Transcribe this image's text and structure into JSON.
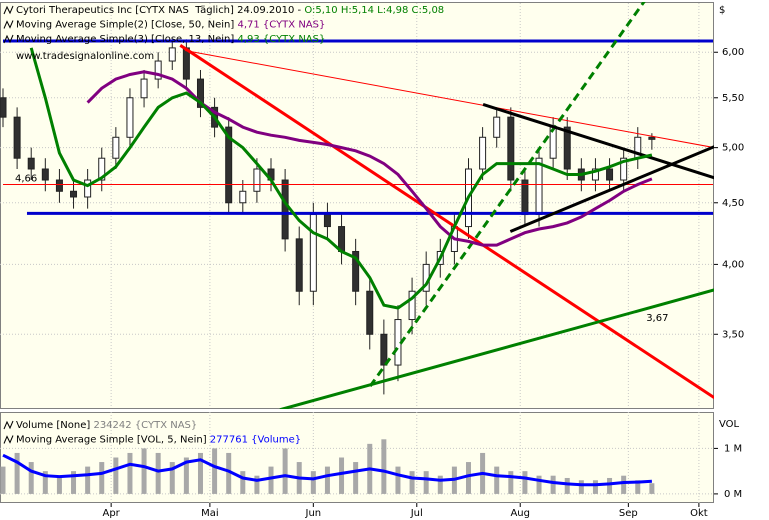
{
  "chart_data": [
    {
      "type": "candlestick",
      "header": [
        {
          "text": "Cytori Therapeutics Inc [CYTX NAS  Täglich] 24.09.2010 - ",
          "value": "O:5,10 H:5,14 L:4,98 C:5,08",
          "color": "#008000"
        },
        {
          "text": "Moving Average Simple(2) [Close, 50, Nein] ",
          "value": "4,71",
          "tail": " {CYTX NAS}",
          "color": "#800080"
        },
        {
          "text": "Moving Average Simple(3) [Close, 13, Nein] ",
          "value": "4,93",
          "tail": " {CYTX NAS}",
          "color": "#008000"
        }
      ],
      "watermark": "www.tradesignalonline.com",
      "y_label": "$",
      "x": [
        0,
        3,
        6,
        9,
        12,
        15,
        18,
        21,
        24,
        27,
        30,
        33,
        36,
        39,
        42,
        45,
        48,
        51,
        54,
        57,
        60,
        63,
        66,
        69,
        72,
        75,
        78,
        81,
        84,
        87,
        90,
        93,
        96,
        99,
        102,
        105,
        108,
        111,
        114,
        117,
        120,
        123,
        126,
        129,
        132,
        135,
        138
      ],
      "open": [
        5.5,
        5.3,
        4.9,
        4.8,
        4.7,
        4.6,
        4.55,
        4.7,
        4.9,
        5.1,
        5.5,
        5.7,
        5.9,
        6.05,
        5.7,
        5.4,
        5.2,
        4.5,
        4.6,
        4.8,
        4.7,
        4.2,
        3.8,
        4.4,
        4.3,
        4.1,
        3.8,
        3.5,
        3.3,
        3.6,
        3.8,
        4.0,
        4.1,
        4.3,
        4.8,
        5.1,
        5.3,
        4.7,
        4.4,
        4.9,
        5.2,
        4.8,
        4.7,
        4.8,
        4.7,
        4.9,
        5.1
      ],
      "high": [
        5.6,
        5.4,
        5.0,
        4.9,
        4.8,
        4.7,
        4.8,
        5.0,
        5.2,
        5.6,
        5.8,
        6.0,
        6.15,
        6.15,
        5.8,
        5.5,
        5.3,
        4.7,
        4.9,
        4.9,
        4.8,
        4.3,
        4.5,
        4.5,
        4.4,
        4.2,
        3.9,
        3.6,
        3.7,
        3.9,
        4.1,
        4.2,
        4.4,
        4.9,
        5.2,
        5.4,
        5.4,
        4.8,
        5.0,
        5.3,
        5.3,
        4.9,
        4.9,
        4.9,
        5.0,
        5.2,
        5.14
      ],
      "low": [
        5.2,
        4.8,
        4.7,
        4.6,
        4.5,
        4.45,
        4.45,
        4.6,
        4.8,
        5.0,
        5.4,
        5.6,
        5.8,
        5.6,
        5.3,
        5.1,
        4.4,
        4.4,
        4.5,
        4.6,
        4.1,
        3.7,
        3.7,
        4.2,
        4.0,
        3.7,
        3.4,
        3.12,
        3.2,
        3.5,
        3.7,
        3.9,
        4.0,
        4.2,
        4.7,
        5.0,
        4.6,
        4.3,
        4.3,
        4.8,
        4.7,
        4.6,
        4.6,
        4.6,
        4.6,
        4.8,
        4.98
      ],
      "close": [
        5.3,
        4.9,
        4.8,
        4.7,
        4.6,
        4.55,
        4.7,
        4.9,
        5.1,
        5.5,
        5.7,
        5.9,
        6.05,
        5.7,
        5.4,
        5.2,
        4.5,
        4.6,
        4.8,
        4.7,
        4.2,
        3.8,
        4.4,
        4.3,
        4.1,
        3.8,
        3.5,
        3.3,
        3.6,
        3.8,
        4.0,
        4.1,
        4.3,
        4.8,
        5.1,
        5.3,
        4.7,
        4.4,
        4.9,
        5.2,
        4.8,
        4.7,
        4.8,
        4.7,
        4.9,
        5.1,
        5.08
      ],
      "series": [
        {
          "color": "#800080",
          "values": [
            null,
            null,
            null,
            null,
            null,
            null,
            5.45,
            5.6,
            5.7,
            5.75,
            5.78,
            5.75,
            5.7,
            5.6,
            5.45,
            5.35,
            5.28,
            5.2,
            5.15,
            5.12,
            5.1,
            5.07,
            5.05,
            5.03,
            5.0,
            4.97,
            4.92,
            4.85,
            4.75,
            4.6,
            4.45,
            4.3,
            4.2,
            4.18,
            4.15,
            4.15,
            4.2,
            4.25,
            4.28,
            4.3,
            4.33,
            4.38,
            4.45,
            4.52,
            4.6,
            4.66,
            4.71
          ]
        },
        {
          "color": "#008000",
          "values": [
            null,
            null,
            6.05,
            5.5,
            4.95,
            4.7,
            4.65,
            4.72,
            4.82,
            5.0,
            5.2,
            5.4,
            5.5,
            5.55,
            5.45,
            5.3,
            5.1,
            5.0,
            4.85,
            4.7,
            4.5,
            4.35,
            4.25,
            4.2,
            4.1,
            4.05,
            3.9,
            3.7,
            3.68,
            3.75,
            3.85,
            4.05,
            4.3,
            4.55,
            4.75,
            4.85,
            4.85,
            4.85,
            4.85,
            4.8,
            4.75,
            4.75,
            4.78,
            4.82,
            4.87,
            4.9,
            4.93
          ]
        }
      ],
      "trendlines": [
        {
          "color": "#ff0000",
          "width": 3,
          "x": [
            37.7,
            151.3
          ],
          "y": [
            6.08,
            3.1
          ]
        },
        {
          "color": "#ff0000",
          "width": 1,
          "x": [
            38.7,
            151.3
          ],
          "y": [
            6.02,
            5.0
          ]
        },
        {
          "color": "#008000",
          "width": 3,
          "dashed": true,
          "x": [
            78.1,
            136.6
          ],
          "y": [
            3.17,
            6.63
          ]
        },
        {
          "color": "#008000",
          "width": 3,
          "x": [
            58.9,
            151.3
          ],
          "y": [
            3.03,
            3.81
          ],
          "label": "3,67"
        },
        {
          "color": "#000000",
          "width": 3,
          "x": [
            102.1,
            151.3
          ],
          "y": [
            5.43,
            4.72
          ]
        },
        {
          "color": "#000000",
          "width": 3,
          "x": [
            107.9,
            151.3
          ],
          "y": [
            4.26,
            5.01
          ]
        }
      ],
      "hlines": [
        {
          "color": "#0000cc",
          "width": 3,
          "x": [
            0,
            151
          ],
          "y": 6.13
        },
        {
          "color": "#0000cc",
          "width": 3,
          "x": [
            5.1,
            151
          ],
          "y": 4.41
        },
        {
          "color": "#ff0000",
          "width": 1,
          "x": [
            0,
            151
          ],
          "y": 4.66,
          "label": "4,66"
        }
      ],
      "xlim": [
        0,
        151
      ],
      "xticks": [
        {
          "value": 23,
          "label": "Apr"
        },
        {
          "value": 44,
          "label": "Mai"
        },
        {
          "value": 66,
          "label": "Jun"
        },
        {
          "value": 88,
          "label": "Jul"
        },
        {
          "value": 110,
          "label": "Aug"
        },
        {
          "value": 133,
          "label": "Sep"
        },
        {
          "value": 148,
          "label": "Okt"
        }
      ],
      "ylim": [
        3.04,
        6.63
      ],
      "log": true,
      "yticks": [
        {
          "value": 3.5,
          "label": "3,50"
        },
        {
          "value": 4,
          "label": "4,00"
        },
        {
          "value": 4.5,
          "label": "4,50"
        },
        {
          "value": 5,
          "label": "5,00"
        },
        {
          "value": 5.5,
          "label": "5,50"
        },
        {
          "value": 6,
          "label": "6,00"
        }
      ],
      "grid": true
    },
    {
      "type": "bar",
      "header": [
        {
          "text": "Volume [None] ",
          "value": "234242",
          "tail": " {CYTX NAS}",
          "color": "#808080"
        },
        {
          "text": "Moving Average Simple [VOL, 5, Nein] ",
          "value": "277761",
          "tail": " {Volume}",
          "color": "#0000ff"
        }
      ],
      "y_label": "VOL",
      "color": "#a8a8a8",
      "values": [
        600000,
        900000,
        700000,
        500000,
        400000,
        500000,
        600000,
        700000,
        800000,
        900000,
        1000000,
        900000,
        700000,
        800000,
        900000,
        1000000,
        900000,
        500000,
        400000,
        600000,
        1000000,
        700000,
        500000,
        600000,
        800000,
        700000,
        1100000,
        1200000,
        600000,
        500000,
        500000,
        400000,
        600000,
        700000,
        900000,
        600000,
        500000,
        500000,
        400000,
        400000,
        350000,
        300000,
        300000,
        350000,
        400000,
        300000,
        234242
      ],
      "series": [
        {
          "color": "#0000ff",
          "values": [
            850000,
            700000,
            500000,
            400000,
            380000,
            400000,
            420000,
            450000,
            550000,
            650000,
            600000,
            500000,
            550000,
            700000,
            750000,
            600000,
            500000,
            350000,
            300000,
            350000,
            400000,
            350000,
            330000,
            400000,
            450000,
            500000,
            550000,
            500000,
            420000,
            350000,
            330000,
            300000,
            320000,
            400000,
            450000,
            400000,
            380000,
            350000,
            300000,
            250000,
            220000,
            200000,
            200000,
            220000,
            250000,
            260000,
            277761
          ]
        }
      ],
      "ylim": [
        -200000,
        1800000
      ],
      "yticks": [
        {
          "value": 0,
          "label": "0 M"
        },
        {
          "value": 1000000,
          "label": "1 M"
        }
      ],
      "grid": true
    }
  ]
}
